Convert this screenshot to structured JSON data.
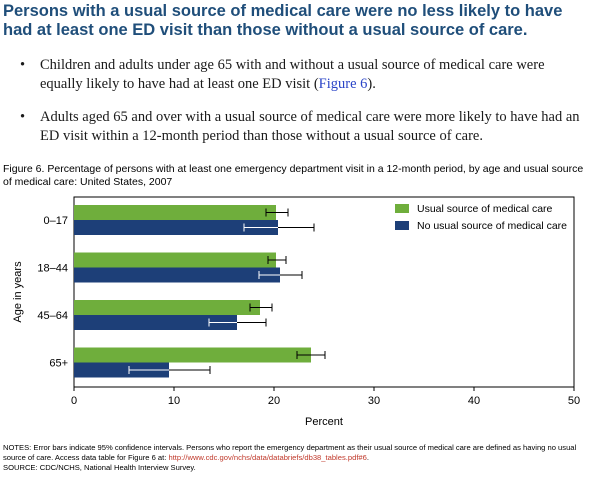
{
  "headline": "Persons with a usual source of medical care were no less likely to have had at least one ED visit than those without a usual source of care.",
  "bullets": {
    "b1_text": "Children and adults under age 65 with and without a usual source of medical care were equally likely to have had at least one ED visit (",
    "b1_link": "Figure 6",
    "b1_end": ").",
    "b2_text": "Adults aged 65 and over with a usual source of medical care were more likely to have had an ED visit within a 12-month period than those without a usual source of care."
  },
  "bullet_glyph": "•",
  "caption": "Figure 6. Percentage of persons with at least one emergency department visit in a 12-month period, by age and usual source of medical care: United States, 2007",
  "notes": {
    "line1": "NOTES: Error bars indicate 95% confidence intervals. Persons who report the emergency department as their usual source of medical care are defined as having no usual source of care. Access data table for Figure 6 at: ",
    "url": "http://www.cdc.gov/nchs/data/databriefs/db38_tables.pdf#6",
    "url_end": ".",
    "source": "SOURCE: CDC/NCHS, National Health Interview Survey."
  },
  "chart_data": {
    "type": "bar",
    "orientation": "horizontal",
    "categories": [
      "0–17",
      "18–44",
      "45–64",
      "65+"
    ],
    "series": [
      {
        "name": "Usual source of medical care",
        "color": "#6fae3c",
        "values": [
          20.2,
          20.2,
          18.6,
          23.7
        ],
        "ci_low": [
          19.2,
          19.4,
          17.6,
          22.3
        ],
        "ci_high": [
          21.4,
          21.2,
          19.8,
          25.1
        ]
      },
      {
        "name": "No usual source of medical care",
        "color": "#1d3f78",
        "values": [
          20.4,
          20.6,
          16.3,
          9.5
        ],
        "ci_low": [
          17.0,
          18.5,
          13.5,
          5.5
        ],
        "ci_high": [
          24.0,
          22.8,
          19.2,
          13.6
        ]
      }
    ],
    "xlabel": "Percent",
    "ylabel": "Age in years",
    "xlim": [
      0,
      50
    ],
    "xticks": [
      0,
      10,
      20,
      30,
      40,
      50
    ],
    "grid": false,
    "legend_position": "top-right"
  }
}
